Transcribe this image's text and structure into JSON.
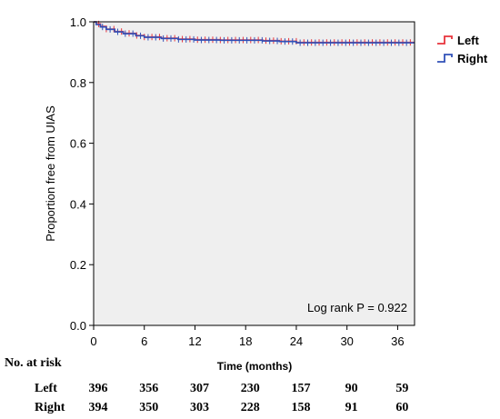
{
  "chart_data": {
    "type": "line",
    "xlabel": "Time (months)",
    "ylabel": "Proportion free from UIAS",
    "xlim": [
      0,
      38
    ],
    "ylim": [
      0,
      1.0
    ],
    "x_ticks": [
      0,
      6,
      12,
      18,
      24,
      30,
      36
    ],
    "y_ticks": [
      0.0,
      0.2,
      0.4,
      0.6,
      0.8,
      1.0
    ],
    "y_tick_labels": [
      "0.0",
      "0.2",
      "0.4",
      "0.6",
      "0.8",
      "1.0"
    ],
    "annotation": "Log rank P = 0.922",
    "legend_position": "top-right outside",
    "grid": false,
    "plot_background": "#efefef",
    "series": [
      {
        "name": "Left",
        "color": "#e8333b",
        "x": [
          0,
          0.3,
          0.8,
          1.5,
          2.5,
          3.5,
          5,
          6,
          8,
          10,
          12,
          15,
          18,
          20,
          22,
          24,
          30,
          36,
          38
        ],
        "y": [
          1.0,
          0.993,
          0.985,
          0.976,
          0.968,
          0.962,
          0.955,
          0.95,
          0.946,
          0.943,
          0.941,
          0.94,
          0.94,
          0.938,
          0.936,
          0.932,
          0.932,
          0.932,
          0.932
        ]
      },
      {
        "name": "Right",
        "color": "#3050b8",
        "x": [
          0,
          0.3,
          0.8,
          1.5,
          2.5,
          3.5,
          5,
          6,
          8,
          10,
          12,
          15,
          18,
          20,
          22,
          24,
          30,
          36,
          38
        ],
        "y": [
          1.0,
          0.991,
          0.983,
          0.975,
          0.967,
          0.961,
          0.954,
          0.949,
          0.945,
          0.942,
          0.94,
          0.939,
          0.939,
          0.937,
          0.935,
          0.931,
          0.931,
          0.931,
          0.931
        ]
      }
    ],
    "at_risk": {
      "title": "No. at risk",
      "times": [
        0,
        6,
        12,
        18,
        24,
        30,
        36
      ],
      "rows": [
        {
          "label": "Left",
          "values": [
            396,
            356,
            307,
            230,
            157,
            90,
            59
          ]
        },
        {
          "label": "Right",
          "values": [
            394,
            350,
            303,
            228,
            158,
            91,
            60
          ]
        }
      ]
    }
  }
}
